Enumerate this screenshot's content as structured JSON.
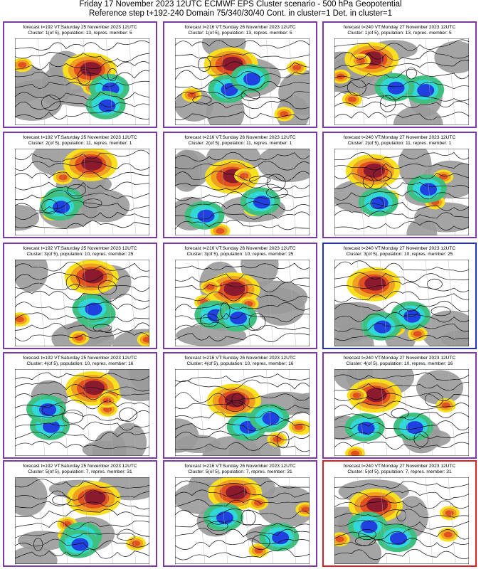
{
  "header": {
    "title_line1": "Friday 17 November 2023 12UTC ECMWF EPS Cluster scenario - 500 hPa Geopotential",
    "title_line2": "Reference step t+192-240 Domain 75/340/30/40 Cont. in cluster=1 Det. in cluster=1"
  },
  "colors": {
    "border_default": "#7b3aa8",
    "border_control": "#2030c8",
    "border_deterministic": "#e02020",
    "anomaly_strong_positive": "#8b1a2e",
    "anomaly_positive": "#e05020",
    "anomaly_weak_positive": "#f0a020",
    "anomaly_weakest_positive": "#f8e020",
    "anomaly_neutral": "#9a9a9a",
    "anomaly_weak_negative": "#40c080",
    "anomaly_negative": "#30d8d8",
    "anomaly_strong_negative": "#2040e0"
  },
  "rows": [
    {
      "panels": [
        {
          "line1": "forecast t=192 VT:Saturday 25 November 2023 12UTC",
          "line2": "Cluster: 1(of 5), population: 13, repres. member: 5",
          "border": "default"
        },
        {
          "line1": "forecast t=216 VT:Sunday 26 November 2023 12UTC",
          "line2": "Cluster: 1(of 5), population: 13, repres. member: 5",
          "border": "default"
        },
        {
          "line1": "forecast t=240 VT:Monday 27 November 2023 12UTC",
          "line2": "Cluster: 1(of 5), population: 13, repres. member: 5",
          "border": "default"
        }
      ]
    },
    {
      "panels": [
        {
          "line1": "forecast t=192 VT:Saturday 25 November 2023 12UTC",
          "line2": "Cluster: 2(of 5), population: 11, repres. member: 1",
          "border": "default"
        },
        {
          "line1": "forecast t=216 VT:Sunday 26 November 2023 12UTC",
          "line2": "Cluster: 2(of 5), population: 11, repres. member: 1",
          "border": "default"
        },
        {
          "line1": "forecast t=240 VT:Monday 27 November 2023 12UTC",
          "line2": "Cluster: 2(of 5), population: 11, repres. member: 1",
          "border": "default"
        }
      ]
    },
    {
      "panels": [
        {
          "line1": "forecast t=192 VT:Saturday 25 November 2023 12UTC",
          "line2": "Cluster: 3(of 5), population: 10, repres. member: 25",
          "border": "default"
        },
        {
          "line1": "forecast t=216 VT:Sunday 26 November 2023 12UTC",
          "line2": "Cluster: 3(of 5), population: 10, repres. member: 25",
          "border": "default"
        },
        {
          "line1": "forecast t=240 VT:Monday 27 November 2023 12UTC",
          "line2": "Cluster: 3(of 5), population: 10, repres. member: 25",
          "border": "control"
        }
      ]
    },
    {
      "panels": [
        {
          "line1": "forecast t=192 VT:Saturday 25 November 2023 12UTC",
          "line2": "Cluster: 4(of 5), population: 10, repres. member: 16",
          "border": "default"
        },
        {
          "line1": "forecast t=216 VT:Sunday 26 November 2023 12UTC",
          "line2": "Cluster: 4(of 5), population: 10, repres. member: 16",
          "border": "default"
        },
        {
          "line1": "forecast t=240 VT:Monday 27 November 2023 12UTC",
          "line2": "Cluster: 4(of 5), population: 10, repres. member: 16",
          "border": "default"
        }
      ]
    },
    {
      "panels": [
        {
          "line1": "forecast t=192 VT:Saturday 25 November 2023 12UTC",
          "line2": "Cluster: 5(of 5), population: 7, repres. member: 31",
          "border": "default"
        },
        {
          "line1": "forecast t=216 VT:Sunday 26 November 2023 12UTC",
          "line2": "Cluster: 5(of 5), population: 7, repres. member: 31",
          "border": "default"
        },
        {
          "line1": "forecast t=240 VT:Monday 27 November 2023 12UTC",
          "line2": "Cluster: 5(of 5), population: 7, repres. member: 31",
          "border": "deterministic"
        }
      ]
    }
  ]
}
